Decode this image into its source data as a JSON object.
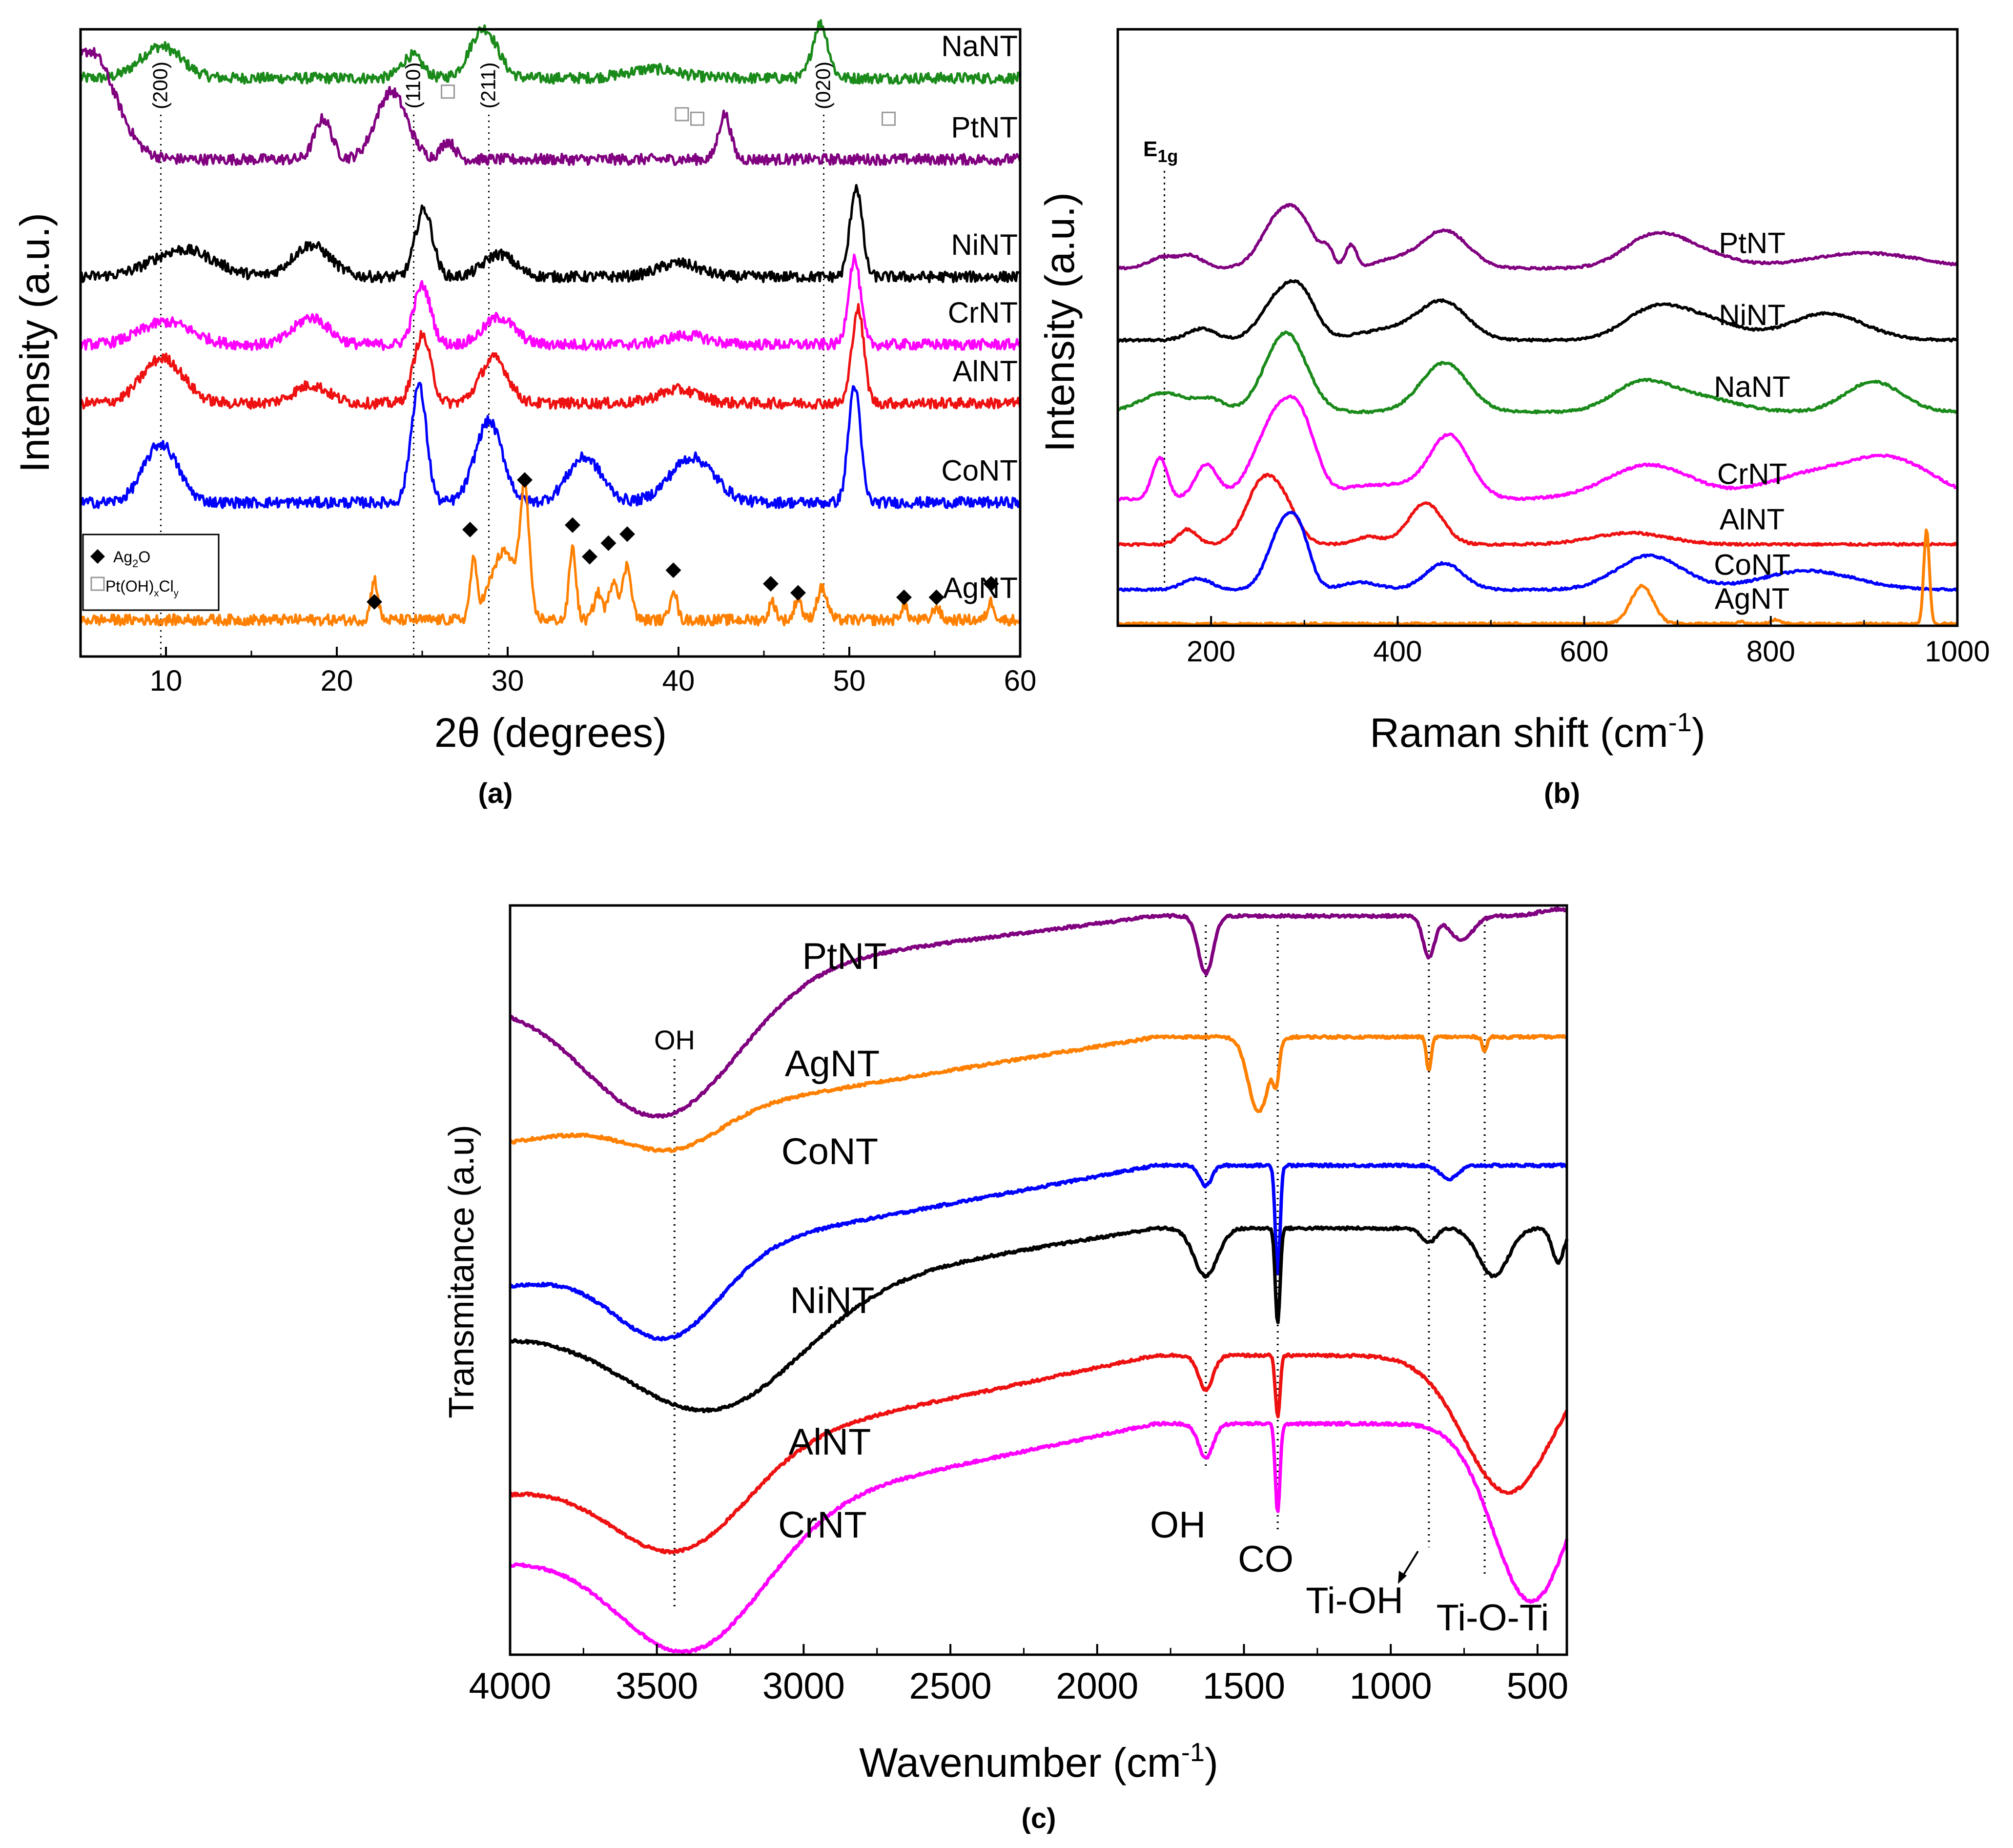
{
  "colors": {
    "PtNT": "#800080",
    "NaNT": "#1a8a1a",
    "NiNT": "#000000",
    "CrNT": "#ff00ff",
    "AlNT": "#ee1111",
    "CoNT": "#0000ff",
    "AgNT": "#ff8000"
  },
  "chart_data": [
    {
      "id": "a",
      "type": "line",
      "panel_label": "(a)",
      "xlabel": "2θ (degrees)",
      "ylabel": "Intensity (a.u.)",
      "xlim": [
        5,
        60
      ],
      "xticks": [
        10,
        20,
        30,
        40,
        50,
        60
      ],
      "yticks_shown": false,
      "reference_lines": [
        {
          "x": 9.7,
          "label": "(200)"
        },
        {
          "x": 24.5,
          "label": "(110)"
        },
        {
          "x": 28.9,
          "label": "(211)"
        },
        {
          "x": 48.5,
          "label": "(020)"
        }
      ],
      "series": [
        {
          "name": "NaNT",
          "label_x": 52,
          "offset": 6,
          "peaks": [
            [
              9.7,
              0.35,
              1.2
            ],
            [
              24.4,
              0.25,
              0.6
            ],
            [
              28.6,
              0.55,
              0.8
            ],
            [
              38.5,
              0.1,
              1.5
            ],
            [
              48.3,
              0.6,
              0.45
            ]
          ]
        },
        {
          "name": "PtNT",
          "label_x": 52,
          "offset": 5.1,
          "peaks": [
            [
              5.5,
              1.2,
              1.5
            ],
            [
              19.2,
              0.45,
              0.5
            ],
            [
              23.2,
              0.75,
              0.9
            ],
            [
              26.5,
              0.2,
              0.4
            ],
            [
              42.7,
              0.5,
              0.35
            ]
          ]
        },
        {
          "name": "NiNT",
          "label_x": 52,
          "offset": 3.8,
          "peaks": [
            [
              11,
              0.3,
              1.8
            ],
            [
              18.5,
              0.35,
              1.1
            ],
            [
              25.1,
              0.75,
              0.5
            ],
            [
              29.5,
              0.25,
              0.9
            ],
            [
              40,
              0.15,
              1.2
            ],
            [
              50.4,
              1.0,
              0.35
            ]
          ]
        },
        {
          "name": "CrNT",
          "label_x": 52,
          "offset": 3.05,
          "peaks": [
            [
              10,
              0.25,
              1.5
            ],
            [
              18.5,
              0.3,
              1.0
            ],
            [
              25.0,
              0.65,
              0.5
            ],
            [
              29.5,
              0.3,
              0.9
            ],
            [
              40.5,
              0.1,
              1.2
            ],
            [
              50.3,
              0.95,
              0.35
            ]
          ]
        },
        {
          "name": "AlNT",
          "label_x": 52,
          "offset": 2.4,
          "peaks": [
            [
              9.8,
              0.5,
              1.2
            ],
            [
              18.5,
              0.2,
              1.0
            ],
            [
              25.0,
              0.75,
              0.5
            ],
            [
              29.2,
              0.5,
              0.8
            ],
            [
              40,
              0.15,
              1.2
            ],
            [
              50.5,
              1.05,
              0.35
            ]
          ]
        },
        {
          "name": "CoNT",
          "label_x": 52,
          "offset": 1.3,
          "peaks": [
            [
              9.7,
              0.65,
              1.0
            ],
            [
              24.8,
              1.3,
              0.45
            ],
            [
              28.9,
              0.9,
              0.8
            ],
            [
              34.5,
              0.5,
              1.0
            ],
            [
              40.8,
              0.5,
              1.3
            ],
            [
              50.3,
              1.3,
              0.35
            ]
          ]
        },
        {
          "name": "AgNT",
          "label_x": 52,
          "offset": 0,
          "peaks": [
            [
              22.2,
              0.45,
              0.2
            ],
            [
              28,
              0.6,
              0.2
            ],
            [
              29.8,
              0.75,
              0.8
            ],
            [
              31,
              1.3,
              0.25
            ],
            [
              33.8,
              0.8,
              0.2
            ],
            [
              35.3,
              0.3,
              0.25
            ],
            [
              36.2,
              0.45,
              0.25
            ],
            [
              37.0,
              0.6,
              0.25
            ],
            [
              39.7,
              0.35,
              0.2
            ],
            [
              45.5,
              0.2,
              0.2
            ],
            [
              47,
              0.25,
              0.2
            ],
            [
              48.4,
              0.35,
              0.3
            ],
            [
              53.2,
              0.15,
              0.2
            ],
            [
              55.1,
              0.15,
              0.2
            ],
            [
              58.3,
              0.2,
              0.2
            ]
          ]
        }
      ],
      "markers": {
        "Ag2O_diamond": [
          [
            22.2,
            0.2
          ],
          [
            27.8,
            1.0
          ],
          [
            31.0,
            1.55
          ],
          [
            33.8,
            1.05
          ],
          [
            34.8,
            0.7
          ],
          [
            35.9,
            0.85
          ],
          [
            37.0,
            0.95
          ],
          [
            39.7,
            0.55
          ],
          [
            45.4,
            0.4
          ],
          [
            47.0,
            0.3
          ],
          [
            53.2,
            0.25
          ],
          [
            55.1,
            0.25
          ],
          [
            58.3,
            0.4
          ]
        ],
        "PtOHCl_square": [
          [
            26.5,
            5.85
          ],
          [
            40.2,
            5.6
          ],
          [
            41.1,
            5.55
          ],
          [
            52.3,
            5.55
          ]
        ]
      },
      "legend": {
        "position": "bottom-left",
        "items": [
          {
            "marker": "diamond",
            "label_base": "Ag",
            "label_sub": "2",
            "label_rest": "O"
          },
          {
            "marker": "square",
            "label_pre": "Pt(OH)",
            "sub1": "x",
            "label_mid": "Cl",
            "sub2": "y"
          }
        ]
      }
    },
    {
      "id": "b",
      "type": "line",
      "panel_label": "(b)",
      "xlabel_pre": "Raman shift (cm",
      "xlabel_sup": "-1",
      "xlabel_post": ")",
      "ylabel": "Intensity (a.u.)",
      "xlim": [
        100,
        1000
      ],
      "xticks": [
        200,
        400,
        600,
        800,
        1000
      ],
      "yticks_shown": false,
      "annotation": {
        "base": "E",
        "sub": "1g",
        "x": 150
      },
      "series": [
        {
          "name": "PtNT",
          "label_x": 780,
          "offset": 4.7,
          "peaks": [
            [
              150,
              0.15,
              15
            ],
            [
              180,
              0.15,
              12
            ],
            [
              275,
              0.7,
              20
            ],
            [
              300,
              0.35,
              15
            ],
            [
              325,
              0.2,
              6
            ],
            [
              350,
              0.3,
              6
            ],
            [
              395,
              0.1,
              20
            ],
            [
              450,
              0.5,
              25
            ],
            [
              670,
              0.3,
              30
            ],
            [
              710,
              0.25,
              40
            ],
            [
              900,
              0.2,
              60
            ]
          ]
        },
        {
          "name": "NiNT",
          "label_x": 780,
          "offset": 3.75,
          "peaks": [
            [
              190,
              0.15,
              15
            ],
            [
              275,
              0.6,
              20
            ],
            [
              300,
              0.4,
              15
            ],
            [
              400,
              0.15,
              40
            ],
            [
              450,
              0.45,
              25
            ],
            [
              670,
              0.3,
              30
            ],
            [
              720,
              0.3,
              40
            ],
            [
              860,
              0.35,
              40
            ]
          ]
        },
        {
          "name": "NaNT",
          "label_x": 780,
          "offset": 2.8,
          "peaks": [
            [
              150,
              0.25,
              25
            ],
            [
              200,
              0.15,
              15
            ],
            [
              280,
              1.05,
              22
            ],
            [
              450,
              0.65,
              25
            ],
            [
              660,
              0.35,
              30
            ],
            [
              720,
              0.2,
              40
            ],
            [
              910,
              0.4,
              30
            ]
          ]
        },
        {
          "name": "CrNT",
          "label_x": 780,
          "offset": 1.65,
          "peaks": [
            [
              145,
              0.55,
              8
            ],
            [
              195,
              0.45,
              12
            ],
            [
              275,
              1.2,
              25
            ],
            [
              300,
              0.4,
              15
            ],
            [
              360,
              0.15,
              20
            ],
            [
              400,
              0.15,
              20
            ],
            [
              455,
              0.85,
              22
            ],
            [
              670,
              0.45,
              45
            ],
            [
              840,
              0.3,
              50
            ],
            [
              930,
              0.5,
              45
            ]
          ]
        },
        {
          "name": "AlNT",
          "label_x": 780,
          "offset": 1.05,
          "peaks": [
            [
              175,
              0.2,
              10
            ],
            [
              255,
              0.8,
              18
            ],
            [
              280,
              0.35,
              15
            ],
            [
              370,
              0.1,
              15
            ],
            [
              430,
              0.55,
              18
            ],
            [
              650,
              0.15,
              40
            ]
          ]
        },
        {
          "name": "CoNT",
          "label_x": 780,
          "offset": 0.45,
          "peaks": [
            [
              185,
              0.15,
              15
            ],
            [
              275,
              0.75,
              15
            ],
            [
              295,
              0.6,
              12
            ],
            [
              360,
              0.1,
              20
            ],
            [
              450,
              0.35,
              20
            ],
            [
              670,
              0.45,
              35
            ],
            [
              840,
              0.25,
              50
            ]
          ]
        },
        {
          "name": "AgNT",
          "label_x": 780,
          "offset": 0,
          "peaks": [
            [
              662,
              0.5,
              12
            ],
            [
              768,
              0.03,
              3
            ],
            [
              805,
              0.05,
              6
            ],
            [
              967,
              1.25,
              3
            ]
          ]
        }
      ]
    },
    {
      "id": "c",
      "type": "line",
      "panel_label": "(c)",
      "xlabel_pre": "Wavenumber (cm",
      "xlabel_sup": "-1",
      "xlabel_post": ")",
      "ylabel": "Transmitance (a.u)",
      "xlim": [
        4000,
        400
      ],
      "xticks": [
        4000,
        3500,
        3000,
        2500,
        2000,
        1500,
        1000,
        500
      ],
      "yticks_shown": false,
      "reference_lines": [
        {
          "x": 3440,
          "label": "OH",
          "label_pos": "top"
        },
        {
          "x": 1630,
          "label": "OH",
          "label_pos": "bottom"
        },
        {
          "x": 1385,
          "label": "CO",
          "label_pos": "bottom"
        },
        {
          "x": 870,
          "label": "Ti-OH",
          "label_pos": "bottom"
        },
        {
          "x": 680,
          "label": "Ti-O-Ti",
          "label_pos": "bottom"
        }
      ],
      "series": [
        {
          "name": "PtNT",
          "label_x": 3500,
          "offset": 10.8
        },
        {
          "name": "AgNT",
          "label_x": 3500,
          "offset": 8.7
        },
        {
          "name": "CoNT",
          "label_x": 3500,
          "offset": 6.6
        },
        {
          "name": "NiNT",
          "label_x": 3500,
          "offset": 5.9
        },
        {
          "name": "AlNT",
          "label_x": 3500,
          "offset": 3.6
        },
        {
          "name": "CrNT",
          "label_x": 3500,
          "offset": 2.6
        }
      ]
    }
  ]
}
